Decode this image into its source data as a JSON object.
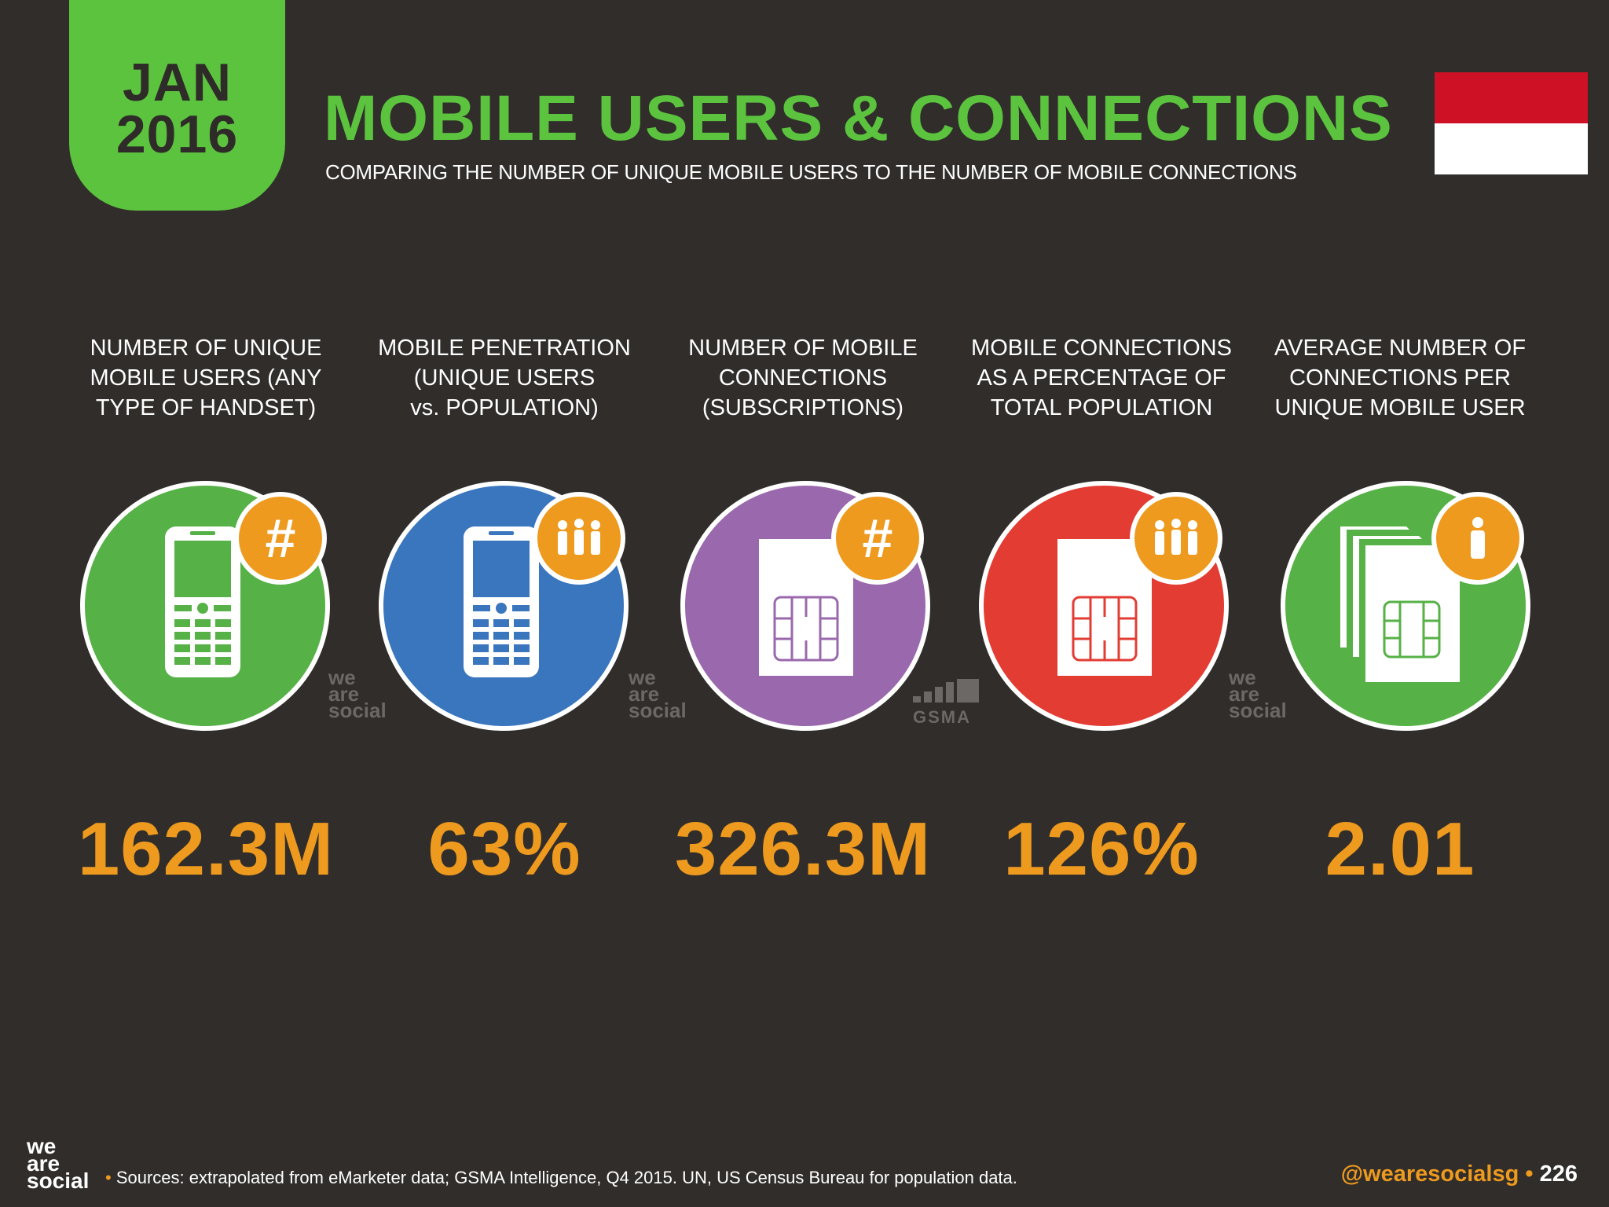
{
  "header": {
    "month": "JAN",
    "year": "2016",
    "title": "MOBILE USERS & CONNECTIONS",
    "subtitle": "COMPARING THE NUMBER OF UNIQUE MOBILE USERS TO THE NUMBER OF MOBILE CONNECTIONS"
  },
  "colors": {
    "background": "#302d2b",
    "accent_green": "#5cc33f",
    "accent_orange": "#ed9a1f",
    "blue": "#3a76be",
    "purple": "#9a69ad",
    "red": "#e23c33",
    "green_circle": "#56b146"
  },
  "flag": {
    "icon": "indonesia-flag",
    "top_color": "#cf1126",
    "bottom_color": "#ffffff"
  },
  "stats": [
    {
      "label_lines": [
        "NUMBER OF UNIQUE",
        "MOBILE USERS (ANY",
        "TYPE OF HANDSET)"
      ],
      "value": "162.3M",
      "icon": "mobile-phone-icon",
      "badge": "hash-icon",
      "color": "#56b146"
    },
    {
      "label_lines": [
        "MOBILE PENETRATION",
        "(UNIQUE USERS",
        "vs. POPULATION)"
      ],
      "value": "63%",
      "icon": "mobile-phone-icon",
      "badge": "people-group-icon",
      "color": "#3a76be"
    },
    {
      "label_lines": [
        "NUMBER OF MOBILE",
        "CONNECTIONS",
        "(SUBSCRIPTIONS)"
      ],
      "value": "326.3M",
      "icon": "sim-card-icon",
      "badge": "hash-icon",
      "color": "#9a69ad"
    },
    {
      "label_lines": [
        "MOBILE CONNECTIONS",
        "AS A PERCENTAGE OF",
        "TOTAL POPULATION"
      ],
      "value": "126%",
      "icon": "sim-card-icon",
      "badge": "people-group-icon",
      "color": "#e23c33"
    },
    {
      "label_lines": [
        "AVERAGE NUMBER OF",
        "CONNECTIONS PER",
        "UNIQUE MOBILE USER"
      ],
      "value": "2.01",
      "icon": "sim-cards-stack-icon",
      "badge": "person-icon",
      "color": "#56b146"
    }
  ],
  "watermarks": {
    "wearesocial": [
      "we",
      "are",
      "social"
    ],
    "gsma": "GSMA"
  },
  "footer": {
    "logo_lines": [
      "we",
      "are",
      "social"
    ],
    "source": "Sources: extrapolated from eMarketer data; GSMA Intelligence, Q4 2015. UN, US Census Bureau for population data.",
    "handle": "@wearesocialsg",
    "separator": "•",
    "page": "226"
  }
}
